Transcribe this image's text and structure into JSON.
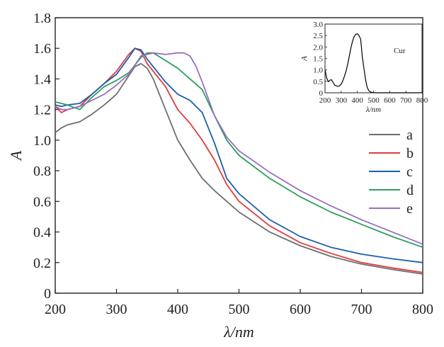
{
  "chart_data": [
    {
      "type": "line",
      "xlabel": "λ/nm",
      "ylabel": "A",
      "xlim": [
        200,
        800
      ],
      "ylim": [
        0,
        1.8
      ],
      "xticks": [
        200,
        300,
        400,
        500,
        600,
        700,
        800
      ],
      "yticks": [
        0,
        0.2,
        0.4,
        0.6,
        0.8,
        1.0,
        1.2,
        1.4,
        1.6,
        1.8
      ],
      "legend_position": "right",
      "series": [
        {
          "name": "a",
          "color": "#6d6e71",
          "x": [
            200,
            210,
            220,
            240,
            260,
            280,
            300,
            320,
            330,
            340,
            350,
            360,
            380,
            400,
            420,
            440,
            460,
            480,
            500,
            550,
            600,
            650,
            700,
            750,
            800
          ],
          "y": [
            1.05,
            1.08,
            1.1,
            1.12,
            1.17,
            1.23,
            1.3,
            1.42,
            1.48,
            1.5,
            1.47,
            1.4,
            1.2,
            1.0,
            0.87,
            0.75,
            0.67,
            0.6,
            0.53,
            0.4,
            0.31,
            0.24,
            0.19,
            0.155,
            0.125
          ]
        },
        {
          "name": "b",
          "color": "#e03a3e",
          "x": [
            200,
            210,
            220,
            240,
            260,
            280,
            300,
            320,
            330,
            340,
            350,
            360,
            380,
            400,
            420,
            440,
            460,
            480,
            500,
            550,
            600,
            650,
            700,
            750,
            800
          ],
          "y": [
            1.22,
            1.18,
            1.2,
            1.22,
            1.3,
            1.37,
            1.45,
            1.56,
            1.6,
            1.58,
            1.5,
            1.45,
            1.35,
            1.2,
            1.11,
            1.0,
            0.87,
            0.71,
            0.6,
            0.44,
            0.33,
            0.26,
            0.2,
            0.165,
            0.135
          ]
        },
        {
          "name": "c",
          "color": "#1c5eab",
          "x": [
            200,
            210,
            220,
            240,
            260,
            280,
            300,
            320,
            330,
            340,
            350,
            360,
            380,
            400,
            420,
            440,
            460,
            480,
            500,
            550,
            600,
            650,
            700,
            750,
            800
          ],
          "y": [
            1.23,
            1.22,
            1.23,
            1.24,
            1.3,
            1.37,
            1.43,
            1.54,
            1.6,
            1.59,
            1.53,
            1.48,
            1.38,
            1.3,
            1.26,
            1.18,
            0.98,
            0.75,
            0.65,
            0.48,
            0.37,
            0.3,
            0.255,
            0.225,
            0.2
          ]
        },
        {
          "name": "d",
          "color": "#2ca05a",
          "x": [
            200,
            210,
            220,
            240,
            260,
            280,
            300,
            320,
            340,
            350,
            360,
            380,
            400,
            420,
            440,
            460,
            480,
            500,
            550,
            600,
            650,
            700,
            750,
            800
          ],
          "y": [
            1.25,
            1.24,
            1.23,
            1.2,
            1.28,
            1.35,
            1.39,
            1.44,
            1.54,
            1.57,
            1.57,
            1.52,
            1.47,
            1.4,
            1.33,
            1.16,
            1.0,
            0.9,
            0.75,
            0.63,
            0.53,
            0.45,
            0.37,
            0.3
          ]
        },
        {
          "name": "e",
          "color": "#9a6fbf",
          "x": [
            200,
            210,
            220,
            240,
            260,
            280,
            300,
            320,
            340,
            360,
            380,
            400,
            410,
            420,
            430,
            440,
            460,
            480,
            500,
            550,
            600,
            650,
            700,
            750,
            800
          ],
          "y": [
            1.22,
            1.2,
            1.2,
            1.22,
            1.26,
            1.3,
            1.36,
            1.43,
            1.55,
            1.57,
            1.56,
            1.57,
            1.57,
            1.55,
            1.48,
            1.38,
            1.16,
            1.02,
            0.93,
            0.79,
            0.67,
            0.57,
            0.48,
            0.4,
            0.32
          ]
        }
      ]
    },
    {
      "type": "line",
      "xlabel": "λ/nm",
      "ylabel": "A",
      "xlim": [
        200,
        800
      ],
      "ylim": [
        0,
        3.0
      ],
      "xticks": [
        200,
        300,
        400,
        500,
        600,
        700,
        800
      ],
      "yticks": [
        0,
        0.5,
        1.0,
        1.5,
        2.0,
        2.5,
        3.0
      ],
      "ytick_labels": [
        "0",
        "0.5",
        "1.0",
        "1.5",
        "2.0",
        "2.5",
        "3.0"
      ],
      "annotation": "Cur",
      "series": [
        {
          "color": "#000000",
          "x": [
            200,
            210,
            220,
            230,
            240,
            250,
            260,
            270,
            280,
            290,
            300,
            310,
            320,
            330,
            340,
            350,
            360,
            370,
            380,
            390,
            400,
            410,
            420,
            425,
            430,
            440,
            450,
            460,
            470,
            480,
            490,
            500,
            520,
            560,
            600,
            800
          ],
          "y": [
            1.0,
            0.65,
            0.48,
            0.55,
            0.57,
            0.45,
            0.33,
            0.3,
            0.28,
            0.3,
            0.38,
            0.52,
            0.72,
            0.95,
            1.25,
            1.6,
            1.95,
            2.25,
            2.45,
            2.55,
            2.58,
            2.5,
            2.35,
            2.0,
            1.6,
            1.1,
            0.6,
            0.25,
            0.1,
            0.04,
            0.02,
            0.01,
            0.0,
            0.0,
            0.0,
            0.0
          ]
        }
      ]
    }
  ]
}
